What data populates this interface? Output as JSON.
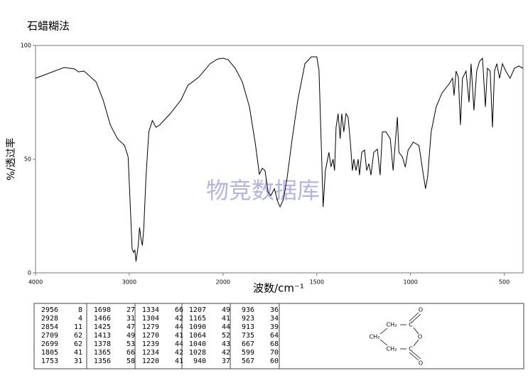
{
  "chart_data": {
    "type": "line",
    "title": "石蜡糊法",
    "xlabel": "波数/cm⁻¹",
    "ylabel": "%/透过率",
    "watermark": "物竞数据库",
    "color": "#000000",
    "xlim": [
      4000,
      400
    ],
    "xticks": [
      4000,
      3000,
      2000,
      1500,
      1000,
      500
    ],
    "ylim": [
      0,
      100
    ],
    "yticks": [
      0,
      50,
      100
    ],
    "x": [
      4000,
      3696,
      3582,
      3544,
      3483,
      3354,
      3278,
      3202,
      3126,
      3050,
      3012,
      2992,
      2970,
      2954,
      2940,
      2928,
      2905,
      2890,
      2875,
      2860,
      2845,
      2822,
      2792,
      2754,
      2715,
      2677,
      2563,
      2449,
      2374,
      2260,
      2137,
      2061,
      2000,
      1973,
      1935,
      1897,
      1859,
      1829,
      1806,
      1791,
      1776,
      1760,
      1745,
      1726,
      1707,
      1696,
      1677,
      1658,
      1631,
      1601,
      1563,
      1529,
      1500,
      1488,
      1473,
      1466,
      1454,
      1435,
      1424,
      1413,
      1405,
      1397,
      1386,
      1375,
      1367,
      1356,
      1344,
      1333,
      1321,
      1310,
      1302,
      1291,
      1279,
      1272,
      1260,
      1245,
      1234,
      1222,
      1211,
      1196,
      1177,
      1162,
      1150,
      1131,
      1108,
      1093,
      1081,
      1070,
      1062,
      1043,
      1028,
      1013,
      985,
      955,
      932,
      920,
      909,
      890,
      863,
      833,
      795,
      776,
      768,
      757,
      745,
      734,
      723,
      704,
      688,
      677,
      662,
      647,
      632,
      616,
      601,
      590,
      575,
      563,
      552,
      540,
      525,
      510,
      492,
      469,
      446,
      423,
      400
    ],
    "values": [
      85.6,
      90.3,
      89.7,
      88.4,
      88.75,
      84,
      76,
      65,
      59,
      56,
      51,
      32,
      10.6,
      9,
      10,
      5,
      12,
      20,
      15,
      12,
      20,
      42,
      62,
      67,
      64,
      65,
      70,
      76,
      82.5,
      86,
      92,
      94,
      94.4,
      93.75,
      90,
      84,
      73,
      57.5,
      43.4,
      46,
      45,
      35.6,
      34,
      37,
      31,
      29,
      32.5,
      42,
      59,
      76,
      92,
      95,
      95,
      89,
      48,
      29,
      45,
      53,
      46.6,
      50,
      45,
      64,
      70,
      59,
      70,
      62,
      70,
      68.5,
      57.5,
      45,
      50,
      45,
      50,
      43,
      53,
      54,
      45,
      48,
      43,
      53,
      54.4,
      43,
      62,
      62,
      59,
      45,
      57.5,
      68.5,
      53,
      51,
      46.5,
      54,
      57.5,
      56,
      43.4,
      37,
      42,
      62,
      73,
      79,
      83,
      85.6,
      78,
      88.75,
      86,
      65,
      85.6,
      88.75,
      75,
      92,
      71.5,
      88.75,
      93,
      94.4,
      73,
      90,
      88.75,
      64,
      88.75,
      92,
      85.6,
      92,
      88.75,
      85.6,
      90,
      91,
      90
    ]
  },
  "peak_table": [
    [
      [
        2956,
        8
      ],
      [
        2928,
        4
      ],
      [
        2854,
        11
      ],
      [
        2709,
        62
      ],
      [
        2699,
        62
      ],
      [
        1805,
        41
      ],
      [
        1753,
        31
      ]
    ],
    [
      [
        1698,
        27
      ],
      [
        1466,
        31
      ],
      [
        1425,
        47
      ],
      [
        1413,
        49
      ],
      [
        1378,
        53
      ],
      [
        1365,
        66
      ],
      [
        1356,
        58
      ]
    ],
    [
      [
        1334,
        66
      ],
      [
        1304,
        42
      ],
      [
        1279,
        44
      ],
      [
        1270,
        41
      ],
      [
        1239,
        44
      ],
      [
        1234,
        42
      ],
      [
        1220,
        41
      ]
    ],
    [
      [
        1207,
        49
      ],
      [
        1165,
        41
      ],
      [
        1090,
        44
      ],
      [
        1064,
        52
      ],
      [
        1040,
        43
      ],
      [
        1028,
        42
      ],
      [
        940,
        37
      ]
    ],
    [
      [
        936,
        36
      ],
      [
        923,
        34
      ],
      [
        913,
        39
      ],
      [
        735,
        64
      ],
      [
        667,
        68
      ],
      [
        599,
        70
      ],
      [
        567,
        60
      ]
    ]
  ],
  "structure": {
    "atoms": [
      "O",
      "C",
      "CH₂",
      "CH₂",
      "O",
      "CH₂",
      "C",
      "O"
    ]
  }
}
